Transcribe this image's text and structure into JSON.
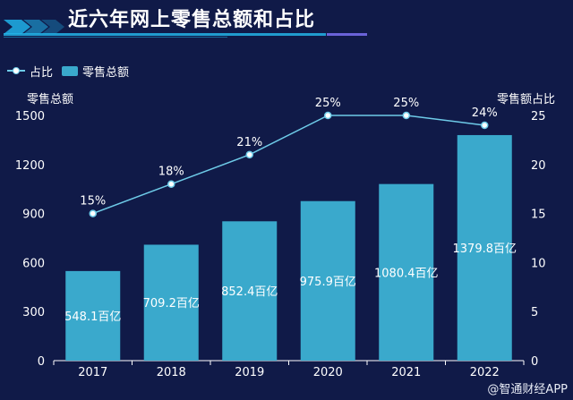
{
  "header": {
    "title": "近六年网上零售总额和占比"
  },
  "legend": {
    "line_label": "占比",
    "bar_label": "零售总额"
  },
  "watermark": "@智通财经APP",
  "colors": {
    "background": "#101a48",
    "bar": "#3aa9cc",
    "line": "#6ecbe8",
    "text": "#ffffff"
  },
  "chart_data": {
    "type": "bar",
    "categories": [
      "2017",
      "2018",
      "2019",
      "2020",
      "2021",
      "2022"
    ],
    "series": [
      {
        "name": "零售总额",
        "type": "bar",
        "axis": "left",
        "values": [
          548.1,
          709.2,
          852.4,
          975.9,
          1080.4,
          1379.8
        ],
        "labels": [
          "548.1百亿",
          "709.2百亿",
          "852.4百亿",
          "975.9百亿",
          "1080.4百亿",
          "1379.8百亿"
        ]
      },
      {
        "name": "占比",
        "type": "line",
        "axis": "right",
        "values": [
          15,
          18,
          21,
          25,
          25,
          24
        ],
        "labels": [
          "15%",
          "18%",
          "21%",
          "25%",
          "25%",
          "24%"
        ]
      }
    ],
    "y_left": {
      "label": "零售总额",
      "ylim": [
        0,
        1500
      ],
      "ticks": [
        0,
        300,
        600,
        900,
        1200,
        1500
      ]
    },
    "y_right": {
      "label": "零售额占比",
      "ylim": [
        0,
        25
      ],
      "ticks": [
        0,
        5,
        10,
        15,
        20,
        25
      ]
    },
    "grid": false,
    "legend_position": "top-left"
  }
}
